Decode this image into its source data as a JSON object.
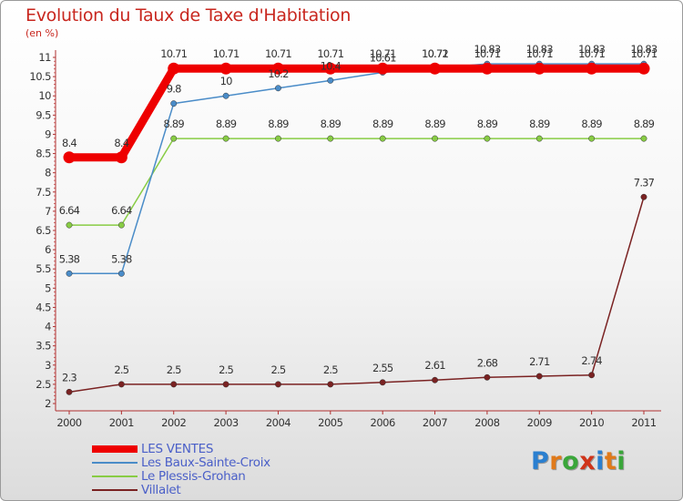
{
  "header": {
    "title": "Evolution du Taux de Taxe d'Habitation",
    "subtitle": "(en %)"
  },
  "logo": {
    "text": "Proxiti"
  },
  "chart_data": {
    "type": "line",
    "title": "Evolution du Taux de Taxe d'Habitation",
    "ylabel": "(en %)",
    "xlabel": "",
    "x": [
      "2000",
      "2001",
      "2002",
      "2003",
      "2004",
      "2005",
      "2006",
      "2007",
      "2008",
      "2009",
      "2010",
      "2011"
    ],
    "ylim": [
      2,
      11
    ],
    "yticks": [
      "2",
      "2.5",
      "3",
      "3.5",
      "4",
      "4.5",
      "5",
      "5.5",
      "6",
      "6.5",
      "7",
      "7.5",
      "8",
      "8.5",
      "9",
      "9.5",
      "10",
      "10.5",
      "11"
    ],
    "grid": false,
    "legend_position": "bottom-left",
    "series": [
      {
        "name": "LES VENTES",
        "color": "#ee0000",
        "values": [
          8.4,
          8.4,
          10.71,
          10.71,
          10.71,
          10.71,
          10.71,
          10.71,
          10.71,
          10.71,
          10.71,
          10.71
        ],
        "labels": [
          "8.4",
          "8.4",
          "10.71",
          "10.71",
          "10.71",
          "10.71",
          "10.71",
          "10.71",
          "10.71",
          "10.71",
          "10.71",
          "10.71"
        ]
      },
      {
        "name": "Les Baux-Sainte-Croix",
        "color": "#4a8cc8",
        "values": [
          5.38,
          5.38,
          9.8,
          10,
          10.2,
          10.4,
          10.61,
          10.72,
          10.83,
          10.83,
          10.83,
          10.83
        ],
        "labels": [
          "5.38",
          "5.38",
          "9.8",
          "10",
          "10.2",
          "10.4",
          "10.61",
          "10.72",
          "10.83",
          "10.83",
          "10.83",
          "10.83"
        ]
      },
      {
        "name": "Le Plessis-Grohan",
        "color": "#88cc44",
        "values": [
          6.64,
          6.64,
          8.89,
          8.89,
          8.89,
          8.89,
          8.89,
          8.89,
          8.89,
          8.89,
          8.89,
          8.89
        ],
        "labels": [
          "6.64",
          "6.64",
          "8.89",
          "8.89",
          "8.89",
          "8.89",
          "8.89",
          "8.89",
          "8.89",
          "8.89",
          "8.89",
          "8.89"
        ]
      },
      {
        "name": "Villalet",
        "color": "#7a2222",
        "values": [
          2.3,
          2.5,
          2.5,
          2.5,
          2.5,
          2.5,
          2.55,
          2.61,
          2.68,
          2.71,
          2.74,
          7.37
        ],
        "labels": [
          "2.3",
          "2.5",
          "2.5",
          "2.5",
          "2.5",
          "2.5",
          "2.55",
          "2.61",
          "2.68",
          "2.71",
          "2.74",
          "7.37"
        ]
      }
    ]
  }
}
